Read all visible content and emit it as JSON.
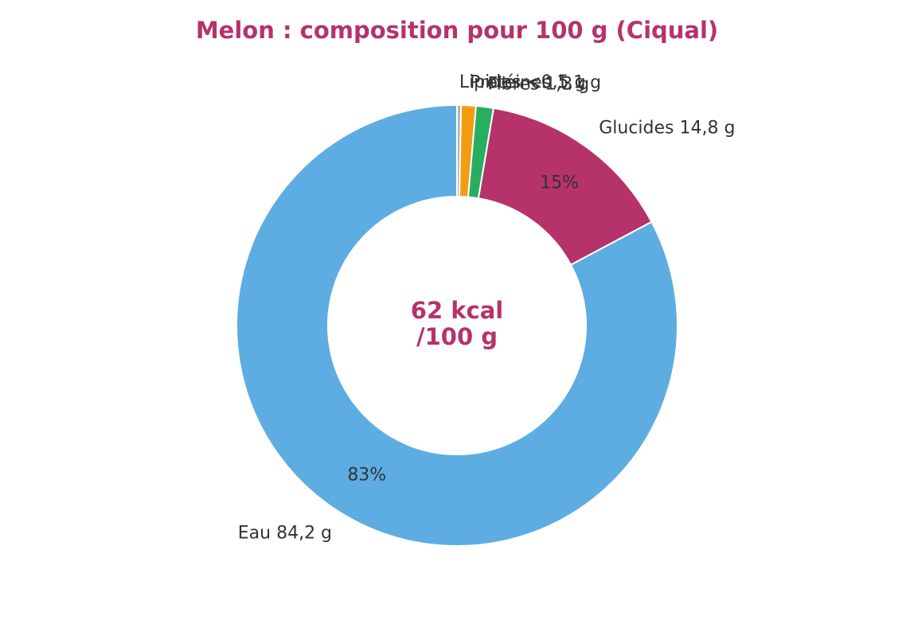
{
  "chart_data": {
    "type": "donut",
    "title": "Melon : composition pour 100 g (Ciqual)",
    "categories": [
      "Lipides <0,5 g",
      "Protéines 1,1 g",
      "Fibres 1,3 g",
      "Glucides 14,8 g",
      "Eau 84,2 g"
    ],
    "values": [
      0.3,
      1.1,
      1.3,
      14.8,
      84.2
    ],
    "colors": [
      "#b0b0b0",
      "#f39c12",
      "#27ae60",
      "#b5336a",
      "#5dade2"
    ],
    "percent_labels": [
      null,
      null,
      null,
      "15%",
      "83%"
    ],
    "center_text": [
      "62 kcal",
      "/100 g"
    ]
  }
}
